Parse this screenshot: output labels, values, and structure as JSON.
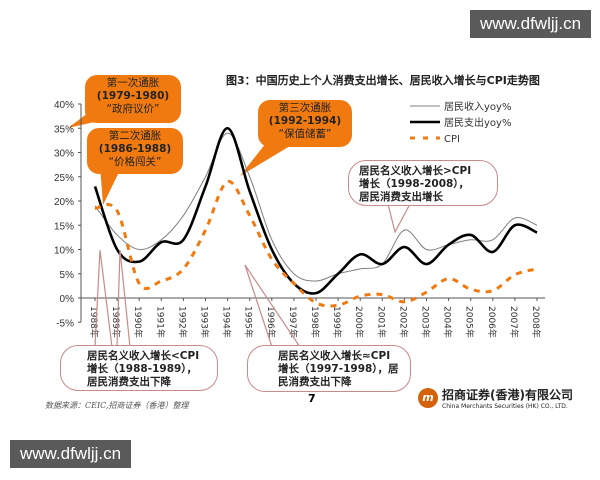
{
  "watermark": "www.dfwljj.cn",
  "chart_data": {
    "type": "line",
    "title": "图3：中国历史上个人消费支出增长、居民收入增长与CPI走势图",
    "x": [
      "1988年",
      "1989年",
      "1990年",
      "1991年",
      "1992年",
      "1993年",
      "1994年",
      "1995年",
      "1996年",
      "1997年",
      "1998年",
      "1999年",
      "2000年",
      "2001年",
      "2002年",
      "2003年",
      "2004年",
      "2005年",
      "2006年",
      "2007年",
      "2008年"
    ],
    "yticks": [
      "-5%",
      "0%",
      "5%",
      "10%",
      "15%",
      "20%",
      "25%",
      "30%",
      "35%",
      "40%"
    ],
    "ylim": [
      -5,
      40
    ],
    "legend_position": "top-right",
    "series": [
      {
        "name": "居民收入yoy%",
        "color": "#808080",
        "values": [
          19,
          13,
          10,
          12,
          17,
          25,
          34,
          25,
          12,
          5,
          3.5,
          5,
          6,
          7,
          14,
          10,
          11,
          12,
          12,
          16.5,
          15
        ]
      },
      {
        "name": "居民支出yoy%",
        "color": "#000000",
        "values": [
          23,
          10,
          7.5,
          11.5,
          12,
          23,
          35,
          22,
          10,
          3,
          1,
          5,
          9,
          7,
          10.5,
          7,
          11,
          13,
          9.5,
          15,
          13.5
        ]
      },
      {
        "name": "CPI",
        "color": "#f07a10",
        "values": [
          18.5,
          18,
          3,
          3.5,
          6,
          14,
          24,
          17,
          8,
          3,
          -1,
          -1.5,
          0.4,
          0.7,
          -0.8,
          1.2,
          4,
          1.8,
          1.5,
          4.8,
          6
        ]
      }
    ],
    "annotations": [
      {
        "lines": [
          "第一次通胀",
          "(1979-1980)",
          "“政府议价”"
        ]
      },
      {
        "lines": [
          "第二次通胀",
          "(1986-1988)",
          "“价格闯关”"
        ]
      },
      {
        "lines": [
          "第三次通胀",
          "(1992-1994)",
          "“保值储蓄”"
        ]
      },
      {
        "lines": [
          "居民名义收入增长>CPI",
          "增长（1998-2008），",
          "居民消费支出增长"
        ]
      },
      {
        "lines": [
          "居民名义收入增长<CPI",
          "增长（1988-1989），",
          "居民消费支出下降"
        ]
      },
      {
        "lines": [
          "居民名义收入增长≈CPI",
          "增长（1997-1998），居",
          "民消费支出下降"
        ]
      }
    ]
  },
  "footer": {
    "source": "数据来源：CEIC,招商证券（香港）整理",
    "page": "7",
    "logo_cn": "招商证券(香港)有限公司",
    "logo_en": "China Merchants Securities (HK) CO., LTD."
  }
}
